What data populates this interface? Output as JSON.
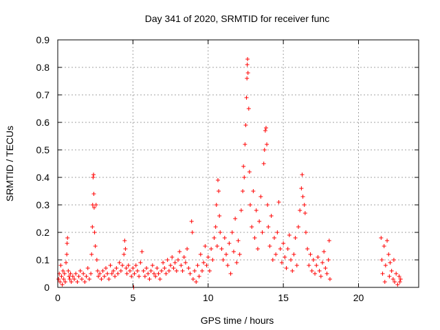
{
  "chart_data": {
    "type": "scatter",
    "title": "Day 341 of 2020, SRMTID for receiver func",
    "xlabel": "GPS time / hours",
    "ylabel": "SRMTID / TECUs",
    "xlim": [
      0,
      24
    ],
    "ylim": [
      0,
      0.9
    ],
    "xticks": [
      0,
      5,
      10,
      15,
      20
    ],
    "yticks": [
      0,
      0.1,
      0.2,
      0.3,
      0.4,
      0.5,
      0.6,
      0.7,
      0.8,
      0.9
    ],
    "xtick_labels": [
      "0",
      "5",
      "10",
      "15",
      "20"
    ],
    "ytick_labels": [
      "0",
      "0.1",
      "0.2",
      "0.3",
      "0.4",
      "0.5",
      "0.6",
      "0.7",
      "0.8",
      "0.9"
    ],
    "grid": true,
    "marker": "+",
    "color": "#ff0000",
    "series": [
      {
        "name": "SRMTID",
        "points": [
          [
            0.05,
            0.03
          ],
          [
            0.1,
            0.05
          ],
          [
            0.15,
            0.02
          ],
          [
            0.2,
            0.08
          ],
          [
            0.25,
            0.04
          ],
          [
            0.3,
            0.01
          ],
          [
            0.35,
            0.06
          ],
          [
            0.4,
            0.03
          ],
          [
            0.45,
            0.05
          ],
          [
            0.5,
            0.02
          ],
          [
            0.55,
            0.09
          ],
          [
            0.6,
            0.12
          ],
          [
            0.62,
            0.16
          ],
          [
            0.65,
            0.18
          ],
          [
            0.7,
            0.06
          ],
          [
            0.75,
            0.04
          ],
          [
            0.8,
            0.03
          ],
          [
            0.85,
            0.05
          ],
          [
            0.9,
            0.02
          ],
          [
            1.0,
            0.04
          ],
          [
            1.1,
            0.03
          ],
          [
            1.2,
            0.05
          ],
          [
            1.3,
            0.02
          ],
          [
            1.4,
            0.04
          ],
          [
            1.5,
            0.06
          ],
          [
            1.6,
            0.03
          ],
          [
            1.7,
            0.05
          ],
          [
            1.8,
            0.02
          ],
          [
            1.9,
            0.04
          ],
          [
            2.0,
            0.07
          ],
          [
            2.1,
            0.03
          ],
          [
            2.2,
            0.05
          ],
          [
            2.25,
            0.12
          ],
          [
            2.3,
            0.22
          ],
          [
            2.32,
            0.3
          ],
          [
            2.35,
            0.4
          ],
          [
            2.38,
            0.41
          ],
          [
            2.4,
            0.34
          ],
          [
            2.42,
            0.29
          ],
          [
            2.45,
            0.2
          ],
          [
            2.5,
            0.15
          ],
          [
            2.55,
            0.3
          ],
          [
            2.6,
            0.1
          ],
          [
            2.65,
            0.06
          ],
          [
            2.7,
            0.04
          ],
          [
            2.8,
            0.05
          ],
          [
            2.9,
            0.03
          ],
          [
            3.0,
            0.06
          ],
          [
            3.1,
            0.04
          ],
          [
            3.2,
            0.07
          ],
          [
            3.3,
            0.05
          ],
          [
            3.4,
            0.03
          ],
          [
            3.5,
            0.08
          ],
          [
            3.6,
            0.05
          ],
          [
            3.7,
            0.06
          ],
          [
            3.8,
            0.04
          ],
          [
            3.9,
            0.07
          ],
          [
            4.0,
            0.05
          ],
          [
            4.1,
            0.09
          ],
          [
            4.2,
            0.06
          ],
          [
            4.3,
            0.08
          ],
          [
            4.4,
            0.12
          ],
          [
            4.45,
            0.17
          ],
          [
            4.5,
            0.14
          ],
          [
            4.55,
            0.07
          ],
          [
            4.6,
            0.05
          ],
          [
            4.7,
            0.08
          ],
          [
            4.8,
            0.06
          ],
          [
            4.9,
            0.04
          ],
          [
            5.0,
            0.07
          ],
          [
            5.05,
            0.0
          ],
          [
            5.1,
            0.05
          ],
          [
            5.2,
            0.08
          ],
          [
            5.3,
            0.06
          ],
          [
            5.4,
            0.04
          ],
          [
            5.5,
            0.09
          ],
          [
            5.6,
            0.13
          ],
          [
            5.7,
            0.06
          ],
          [
            5.8,
            0.04
          ],
          [
            5.9,
            0.07
          ],
          [
            6.0,
            0.05
          ],
          [
            6.1,
            0.03
          ],
          [
            6.2,
            0.06
          ],
          [
            6.3,
            0.08
          ],
          [
            6.4,
            0.05
          ],
          [
            6.5,
            0.04
          ],
          [
            6.6,
            0.07
          ],
          [
            6.7,
            0.05
          ],
          [
            6.8,
            0.03
          ],
          [
            6.9,
            0.06
          ],
          [
            7.0,
            0.09
          ],
          [
            7.1,
            0.07
          ],
          [
            7.2,
            0.05
          ],
          [
            7.3,
            0.1
          ],
          [
            7.4,
            0.06
          ],
          [
            7.5,
            0.08
          ],
          [
            7.6,
            0.11
          ],
          [
            7.7,
            0.07
          ],
          [
            7.8,
            0.09
          ],
          [
            7.9,
            0.06
          ],
          [
            8.0,
            0.1
          ],
          [
            8.1,
            0.13
          ],
          [
            8.2,
            0.08
          ],
          [
            8.3,
            0.06
          ],
          [
            8.4,
            0.11
          ],
          [
            8.5,
            0.09
          ],
          [
            8.6,
            0.14
          ],
          [
            8.7,
            0.07
          ],
          [
            8.8,
            0.05
          ],
          [
            8.9,
            0.24
          ],
          [
            8.95,
            0.2
          ],
          [
            9.0,
            0.03
          ],
          [
            9.1,
            0.06
          ],
          [
            9.2,
            0.02
          ],
          [
            9.3,
            0.08
          ],
          [
            9.4,
            0.04
          ],
          [
            9.5,
            0.12
          ],
          [
            9.6,
            0.06
          ],
          [
            9.7,
            0.09
          ],
          [
            9.8,
            0.15
          ],
          [
            9.9,
            0.08
          ],
          [
            10.0,
            0.11
          ],
          [
            10.1,
            0.06
          ],
          [
            10.2,
            0.14
          ],
          [
            10.3,
            0.1
          ],
          [
            10.4,
            0.18
          ],
          [
            10.5,
            0.22
          ],
          [
            10.55,
            0.3
          ],
          [
            10.6,
            0.15
          ],
          [
            10.65,
            0.39
          ],
          [
            10.7,
            0.35
          ],
          [
            10.75,
            0.26
          ],
          [
            10.8,
            0.2
          ],
          [
            10.9,
            0.14
          ],
          [
            11.0,
            0.1
          ],
          [
            11.1,
            0.18
          ],
          [
            11.2,
            0.12
          ],
          [
            11.3,
            0.08
          ],
          [
            11.4,
            0.16
          ],
          [
            11.5,
            0.05
          ],
          [
            11.6,
            0.2
          ],
          [
            11.7,
            0.13
          ],
          [
            11.8,
            0.25
          ],
          [
            11.9,
            0.09
          ],
          [
            12.0,
            0.17
          ],
          [
            12.1,
            0.12
          ],
          [
            12.2,
            0.28
          ],
          [
            12.3,
            0.35
          ],
          [
            12.35,
            0.44
          ],
          [
            12.4,
            0.4
          ],
          [
            12.45,
            0.52
          ],
          [
            12.5,
            0.59
          ],
          [
            12.55,
            0.69
          ],
          [
            12.58,
            0.76
          ],
          [
            12.6,
            0.81
          ],
          [
            12.62,
            0.83
          ],
          [
            12.65,
            0.78
          ],
          [
            12.7,
            0.65
          ],
          [
            12.75,
            0.42
          ],
          [
            12.8,
            0.3
          ],
          [
            12.9,
            0.22
          ],
          [
            13.0,
            0.35
          ],
          [
            13.1,
            0.18
          ],
          [
            13.2,
            0.28
          ],
          [
            13.3,
            0.14
          ],
          [
            13.4,
            0.24
          ],
          [
            13.5,
            0.33
          ],
          [
            13.6,
            0.2
          ],
          [
            13.7,
            0.45
          ],
          [
            13.75,
            0.5
          ],
          [
            13.8,
            0.57
          ],
          [
            13.85,
            0.58
          ],
          [
            13.9,
            0.52
          ],
          [
            13.95,
            0.3
          ],
          [
            14.0,
            0.22
          ],
          [
            14.1,
            0.15
          ],
          [
            14.2,
            0.26
          ],
          [
            14.3,
            0.1
          ],
          [
            14.4,
            0.18
          ],
          [
            14.5,
            0.12
          ],
          [
            14.6,
            0.2
          ],
          [
            14.7,
            0.31
          ],
          [
            14.8,
            0.14
          ],
          [
            14.9,
            0.09
          ],
          [
            15.0,
            0.16
          ],
          [
            15.1,
            0.11
          ],
          [
            15.2,
            0.07
          ],
          [
            15.3,
            0.14
          ],
          [
            15.4,
            0.19
          ],
          [
            15.5,
            0.1
          ],
          [
            15.6,
            0.06
          ],
          [
            15.7,
            0.12
          ],
          [
            15.8,
            0.18
          ],
          [
            15.9,
            0.08
          ],
          [
            16.0,
            0.22
          ],
          [
            16.1,
            0.28
          ],
          [
            16.2,
            0.36
          ],
          [
            16.25,
            0.41
          ],
          [
            16.3,
            0.33
          ],
          [
            16.4,
            0.3
          ],
          [
            16.45,
            0.27
          ],
          [
            16.5,
            0.2
          ],
          [
            16.6,
            0.14
          ],
          [
            16.7,
            0.08
          ],
          [
            16.8,
            0.12
          ],
          [
            16.9,
            0.06
          ],
          [
            17.0,
            0.1
          ],
          [
            17.1,
            0.05
          ],
          [
            17.2,
            0.08
          ],
          [
            17.3,
            0.11
          ],
          [
            17.4,
            0.06
          ],
          [
            17.5,
            0.04
          ],
          [
            17.6,
            0.09
          ],
          [
            17.7,
            0.13
          ],
          [
            17.8,
            0.07
          ],
          [
            17.9,
            0.05
          ],
          [
            18.0,
            0.1
          ],
          [
            18.05,
            0.17
          ],
          [
            18.1,
            0.03
          ],
          [
            21.5,
            0.18
          ],
          [
            21.55,
            0.1
          ],
          [
            21.6,
            0.05
          ],
          [
            21.7,
            0.15
          ],
          [
            21.75,
            0.02
          ],
          [
            21.8,
            0.08
          ],
          [
            21.9,
            0.17
          ],
          [
            22.0,
            0.12
          ],
          [
            22.05,
            0.04
          ],
          [
            22.1,
            0.09
          ],
          [
            22.2,
            0.06
          ],
          [
            22.3,
            0.03
          ],
          [
            22.35,
            0.1
          ],
          [
            22.4,
            0.02
          ],
          [
            22.5,
            0.05
          ],
          [
            22.6,
            0.01
          ],
          [
            22.7,
            0.04
          ],
          [
            22.75,
            0.02
          ],
          [
            22.8,
            0.03
          ]
        ]
      }
    ]
  }
}
